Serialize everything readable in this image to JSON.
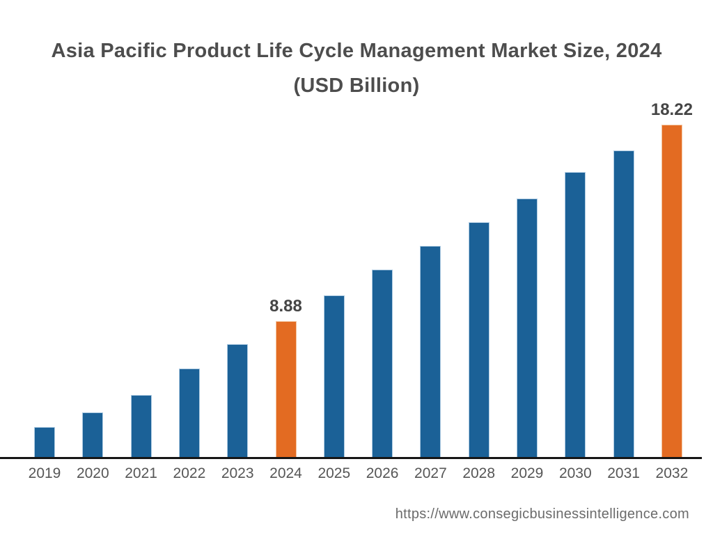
{
  "title": {
    "line1": "Asia Pacific Product Life Cycle Management Market Size, 2024",
    "line2": "(USD Billion)"
  },
  "footer": {
    "url": "https://www.consegicbusinessintelligence.com"
  },
  "chart_data": {
    "type": "bar",
    "title": "Asia Pacific Product Life Cycle Management Market Size, 2024 (USD Billion)",
    "categories": [
      "2019",
      "2020",
      "2021",
      "2022",
      "2023",
      "2024",
      "2025",
      "2026",
      "2027",
      "2028",
      "2029",
      "2030",
      "2031",
      "2032"
    ],
    "values": [
      3.82,
      4.51,
      5.37,
      6.62,
      7.77,
      8.88,
      10.11,
      11.33,
      12.46,
      13.6,
      14.7,
      15.96,
      16.99,
      18.22
    ],
    "value_labels": {
      "2024": "8.88",
      "2032": "18.22"
    },
    "xlabel": "",
    "ylabel": "",
    "ylim": [
      2.4,
      18.3
    ],
    "grid": false,
    "legend": "none",
    "colors": {
      "bar_default": "#1b6197",
      "bar_highlight": "#e36b22",
      "bar_default_stroke": "#aecbe2",
      "bar_highlight_stroke": "#f3c49f",
      "axis_line": "#161616",
      "highlight_years": [
        "2024",
        "2032"
      ]
    }
  }
}
